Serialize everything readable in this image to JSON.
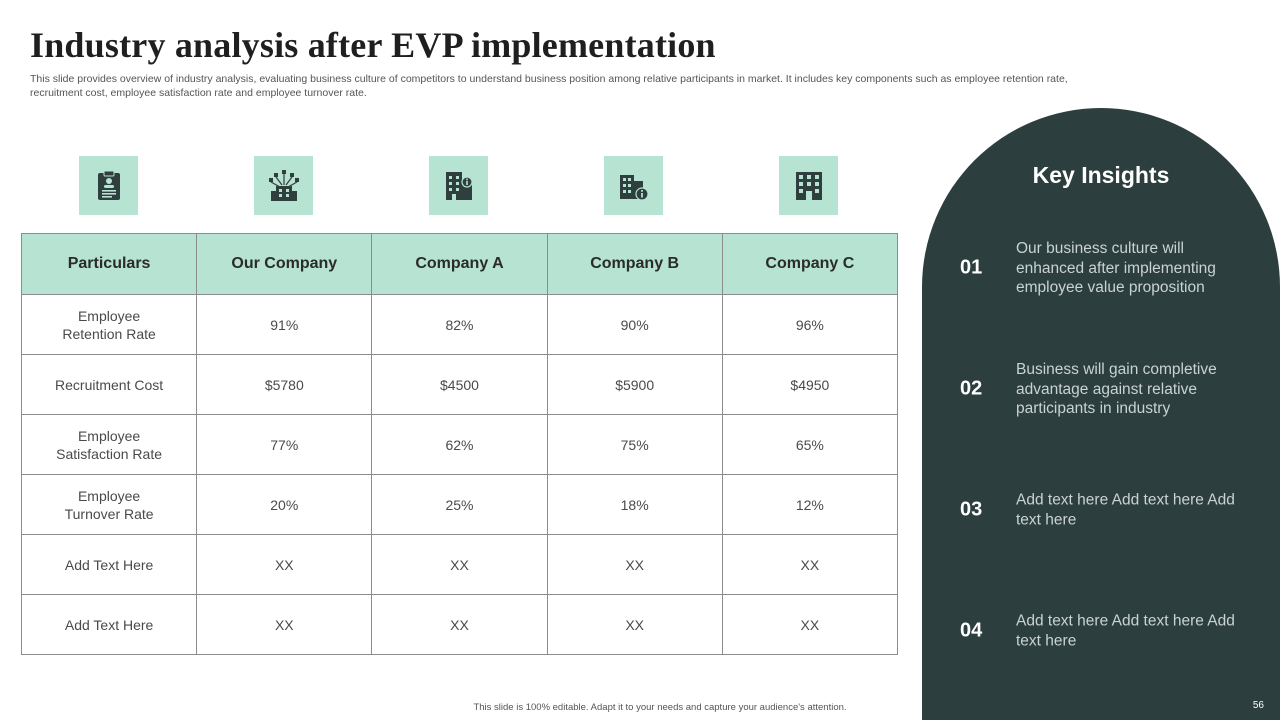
{
  "header": {
    "title": "Industry analysis after EVP implementation",
    "subtitle": "This slide provides overview of industry analysis, evaluating business culture of competitors to understand business position among relative participants in market. It includes key components such as employee retention rate, recruitment cost, employee satisfaction rate and employee turnover rate."
  },
  "icons": [
    {
      "name": "clipboard-person-icon"
    },
    {
      "name": "organization-network-icon"
    },
    {
      "name": "building-info-icon"
    },
    {
      "name": "company-info-icon"
    },
    {
      "name": "office-building-icon"
    }
  ],
  "table": {
    "headers": [
      "Particulars",
      "Our Company",
      "Company A",
      "Company B",
      "Company C"
    ],
    "rows": [
      [
        "Employee Retention Rate",
        "91%",
        "82%",
        "90%",
        "96%"
      ],
      [
        "Recruitment Cost",
        "$5780",
        "$4500",
        "$5900",
        "$4950"
      ],
      [
        "Employee Satisfaction Rate",
        "77%",
        "62%",
        "75%",
        "65%"
      ],
      [
        "Employee Turnover Rate",
        "20%",
        "25%",
        "18%",
        "12%"
      ],
      [
        "Add Text Here",
        "XX",
        "XX",
        "XX",
        "XX"
      ],
      [
        "Add Text Here",
        "XX",
        "XX",
        "XX",
        "XX"
      ]
    ]
  },
  "insights": {
    "title": "Key Insights",
    "items": [
      {
        "num": "01",
        "text": "Our business culture will enhanced after implementing employee value proposition"
      },
      {
        "num": "02",
        "text": "Business will gain completive advantage against relative participants in industry"
      },
      {
        "num": "03",
        "text": "Add text here Add text here Add text here"
      },
      {
        "num": "04",
        "text": "Add text here Add text here Add text here"
      }
    ]
  },
  "footer": {
    "note": "This slide is 100% editable. Adapt it to your needs and capture your audience's attention.",
    "page": "56"
  },
  "colors": {
    "accent": "#b6e3d2",
    "panel": "#2c3e3d",
    "icon": "#2f3f3e"
  }
}
